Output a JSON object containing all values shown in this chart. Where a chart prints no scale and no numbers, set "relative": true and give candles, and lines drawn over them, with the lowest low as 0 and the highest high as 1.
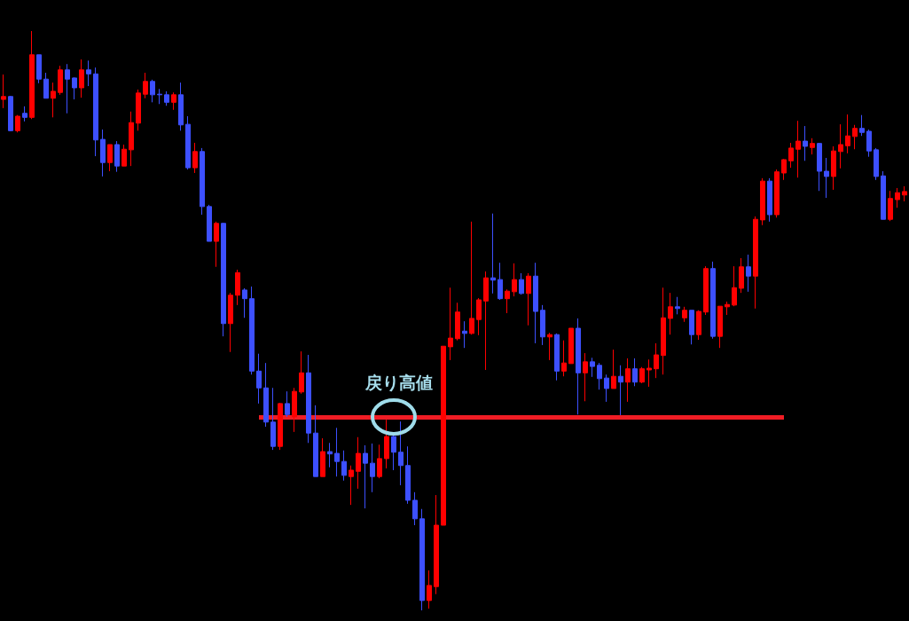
{
  "chart_data": {
    "type": "candlestick",
    "relative": true,
    "categories": [
      null,
      null,
      null,
      null,
      null,
      null,
      null,
      null,
      null,
      null,
      null,
      null,
      null,
      null,
      null,
      null,
      null,
      null,
      null,
      null,
      null,
      null,
      null,
      null,
      null,
      null,
      null,
      null,
      null,
      null,
      null,
      null,
      null,
      null,
      null,
      null,
      null,
      null,
      null,
      null,
      null,
      null,
      null,
      null,
      null,
      null,
      null,
      null,
      null,
      null,
      null,
      null,
      null,
      null,
      null,
      null,
      null,
      null,
      null,
      null,
      null,
      null,
      null,
      null,
      null,
      null,
      null,
      null,
      null,
      null,
      null,
      null,
      null,
      null,
      null,
      null,
      null,
      null,
      null,
      null,
      null,
      null,
      null,
      null,
      null,
      null,
      null,
      null,
      null,
      null,
      null,
      null,
      null,
      null,
      null,
      null,
      null,
      null,
      null,
      null,
      null,
      null,
      null,
      null,
      null,
      null,
      null,
      null,
      null,
      null,
      null,
      null,
      null,
      null,
      null,
      null,
      null,
      null,
      null,
      null,
      null,
      null,
      null,
      null,
      null,
      null,
      null,
      null
    ],
    "ohlc": [
      [
        0.882,
        0.925,
        0.867,
        0.887
      ],
      [
        0.887,
        0.888,
        0.827,
        0.828
      ],
      [
        0.828,
        0.855,
        0.825,
        0.853
      ],
      [
        0.858,
        0.87,
        0.844,
        0.851
      ],
      [
        0.851,
        1,
        0.848,
        0.959
      ],
      [
        0.959,
        0.959,
        0.91,
        0.917
      ],
      [
        0.917,
        0.928,
        0.884,
        0.884
      ],
      [
        0.884,
        0.911,
        0.851,
        0.896
      ],
      [
        0.894,
        0.94,
        0.89,
        0.933
      ],
      [
        0.933,
        0.943,
        0.858,
        0.917
      ],
      [
        0.919,
        0.92,
        0.882,
        0.902
      ],
      [
        0.902,
        0.951,
        0.885,
        0.933
      ],
      [
        0.933,
        0.949,
        0.905,
        0.926
      ],
      [
        0.926,
        0.937,
        0.784,
        0.812
      ],
      [
        0.813,
        0.83,
        0.749,
        0.773
      ],
      [
        0.773,
        0.804,
        0.758,
        0.804
      ],
      [
        0.804,
        0.81,
        0.757,
        0.767
      ],
      [
        0.767,
        0.804,
        0.767,
        0.796
      ],
      [
        0.795,
        0.861,
        0.767,
        0.842
      ],
      [
        0.841,
        0.899,
        0.828,
        0.893
      ],
      [
        0.891,
        0.928,
        0.884,
        0.913
      ],
      [
        0.913,
        0.916,
        0.877,
        0.89
      ],
      [
        0.891,
        0.9,
        0.874,
        0.89
      ],
      [
        0.89,
        0.896,
        0.871,
        0.877
      ],
      [
        0.877,
        0.894,
        0.864,
        0.89
      ],
      [
        0.89,
        0.911,
        0.828,
        0.838
      ],
      [
        0.839,
        0.853,
        0.761,
        0.764
      ],
      [
        0.764,
        0.807,
        0.755,
        0.792
      ],
      [
        0.792,
        0.798,
        0.683,
        0.697
      ],
      [
        0.697,
        0.7,
        0.637,
        0.637
      ],
      [
        0.637,
        0.671,
        0.593,
        0.668
      ],
      [
        0.668,
        0.669,
        0.473,
        0.495
      ],
      [
        0.495,
        0.548,
        0.446,
        0.544
      ],
      [
        0.544,
        0.588,
        0.527,
        0.583
      ],
      [
        0.553,
        0.556,
        0.505,
        0.538
      ],
      [
        0.538,
        0.559,
        0.407,
        0.413
      ],
      [
        0.413,
        0.443,
        0.357,
        0.384
      ],
      [
        0.384,
        0.427,
        0.317,
        0.325
      ],
      [
        0.325,
        0.384,
        0.277,
        0.283
      ],
      [
        0.283,
        0.358,
        0.277,
        0.357
      ],
      [
        0.357,
        0.378,
        0.334,
        0.338
      ],
      [
        0.334,
        0.384,
        0.308,
        0.378
      ],
      [
        0.377,
        0.447,
        0.374,
        0.41
      ],
      [
        0.41,
        0.441,
        0.289,
        0.306
      ],
      [
        0.306,
        0.354,
        0.231,
        0.231
      ],
      [
        0.231,
        0.297,
        0.231,
        0.274
      ],
      [
        0.274,
        0.289,
        0.247,
        0.27
      ],
      [
        0.271,
        0.315,
        0.231,
        0.257
      ],
      [
        0.257,
        0.276,
        0.224,
        0.233
      ],
      [
        0.231,
        0.25,
        0.182,
        0.242
      ],
      [
        0.24,
        0.299,
        0.21,
        0.271
      ],
      [
        0.271,
        0.285,
        0.176,
        0.254
      ],
      [
        0.254,
        0.288,
        0.204,
        0.231
      ],
      [
        0.231,
        0.286,
        0.228,
        0.262
      ],
      [
        0.262,
        0.329,
        0.245,
        0.3
      ],
      [
        0.3,
        0.303,
        0.242,
        0.273
      ],
      [
        0.273,
        0.326,
        0.216,
        0.25
      ],
      [
        0.25,
        0.283,
        0.184,
        0.19
      ],
      [
        0.19,
        0.204,
        0.147,
        0.158
      ],
      [
        0.158,
        0.175,
        0,
        0.017
      ],
      [
        0.017,
        0.069,
        0.003,
        0.043
      ],
      [
        0.041,
        0.199,
        0.028,
        0.147
      ],
      [
        0.147,
        0.456,
        0.147,
        0.456
      ],
      [
        0.455,
        0.557,
        0.432,
        0.47
      ],
      [
        0.469,
        0.531,
        0.466,
        0.515
      ],
      [
        0.482,
        0.499,
        0.453,
        0.478
      ],
      [
        0.478,
        0.671,
        0.476,
        0.504
      ],
      [
        0.502,
        0.539,
        0.475,
        0.536
      ],
      [
        0.534,
        0.585,
        0.415,
        0.574
      ],
      [
        0.574,
        0.685,
        0.547,
        0.57
      ],
      [
        0.571,
        0.6,
        0.536,
        0.538
      ],
      [
        0.538,
        0.554,
        0.513,
        0.551
      ],
      [
        0.55,
        0.599,
        0.542,
        0.571
      ],
      [
        0.571,
        0.582,
        0.545,
        0.547
      ],
      [
        0.547,
        0.582,
        0.492,
        0.577
      ],
      [
        0.577,
        0.6,
        0.461,
        0.516
      ],
      [
        0.518,
        0.527,
        0.458,
        0.472
      ],
      [
        0.472,
        0.479,
        0.432,
        0.476
      ],
      [
        0.476,
        0.478,
        0.397,
        0.413
      ],
      [
        0.413,
        0.466,
        0.404,
        0.427
      ],
      [
        0.426,
        0.487,
        0.426,
        0.487
      ],
      [
        0.487,
        0.504,
        0.338,
        0.41
      ],
      [
        0.41,
        0.444,
        0.361,
        0.429
      ],
      [
        0.429,
        0.436,
        0.403,
        0.421
      ],
      [
        0.423,
        0.427,
        0.381,
        0.4
      ],
      [
        0.401,
        0.407,
        0.36,
        0.383
      ],
      [
        0.383,
        0.45,
        0.383,
        0.404
      ],
      [
        0.404,
        0.423,
        0.337,
        0.394
      ],
      [
        0.394,
        0.435,
        0.36,
        0.417
      ],
      [
        0.417,
        0.435,
        0.387,
        0.394
      ],
      [
        0.394,
        0.42,
        0.392,
        0.417
      ],
      [
        0.415,
        0.433,
        0.386,
        0.418
      ],
      [
        0.417,
        0.461,
        0.401,
        0.441
      ],
      [
        0.44,
        0.557,
        0.407,
        0.505
      ],
      [
        0.504,
        0.548,
        0.476,
        0.524
      ],
      [
        0.524,
        0.541,
        0.511,
        0.521
      ],
      [
        0.505,
        0.524,
        0.498,
        0.518
      ],
      [
        0.518,
        0.518,
        0.459,
        0.476
      ],
      [
        0.476,
        0.518,
        0.467,
        0.516
      ],
      [
        0.515,
        0.594,
        0.51,
        0.59
      ],
      [
        0.59,
        0.602,
        0.469,
        0.473
      ],
      [
        0.473,
        0.525,
        0.453,
        0.525
      ],
      [
        0.524,
        0.533,
        0.51,
        0.528
      ],
      [
        0.527,
        0.594,
        0.525,
        0.557
      ],
      [
        0.556,
        0.608,
        0.548,
        0.593
      ],
      [
        0.593,
        0.614,
        0.55,
        0.577
      ],
      [
        0.577,
        0.68,
        0.521,
        0.675
      ],
      [
        0.674,
        0.746,
        0.665,
        0.741
      ],
      [
        0.741,
        0.746,
        0.671,
        0.683
      ],
      [
        0.683,
        0.761,
        0.678,
        0.757
      ],
      [
        0.755,
        0.779,
        0.743,
        0.778
      ],
      [
        0.776,
        0.807,
        0.764,
        0.798
      ],
      [
        0.796,
        0.845,
        0.747,
        0.81
      ],
      [
        0.81,
        0.836,
        0.776,
        0.801
      ],
      [
        0.799,
        0.815,
        0.787,
        0.806
      ],
      [
        0.806,
        0.807,
        0.724,
        0.758
      ],
      [
        0.758,
        0.781,
        0.712,
        0.749
      ],
      [
        0.749,
        0.801,
        0.726,
        0.793
      ],
      [
        0.792,
        0.839,
        0.763,
        0.804
      ],
      [
        0.802,
        0.856,
        0.789,
        0.819
      ],
      [
        0.818,
        0.838,
        0.796,
        0.832
      ],
      [
        0.832,
        0.855,
        0.819,
        0.825
      ],
      [
        0.827,
        0.83,
        0.783,
        0.793
      ],
      [
        0.795,
        0.798,
        0.743,
        0.749
      ],
      [
        0.75,
        0.758,
        0.675,
        0.675
      ],
      [
        0.675,
        0.724,
        0.672,
        0.711
      ],
      [
        0.709,
        0.729,
        0.695,
        0.721
      ],
      [
        0.717,
        0.732,
        0.706,
        0.723
      ]
    ],
    "colors": [
      "#ff0000",
      "#3d50ff",
      "#ff0000",
      "#3d50ff",
      "#ff0000",
      "#3d50ff",
      "#3d50ff",
      "#ff0000",
      "#ff0000",
      "#3d50ff",
      "#3d50ff",
      "#ff0000",
      "#3d50ff",
      "#3d50ff",
      "#3d50ff",
      "#ff0000",
      "#3d50ff",
      "#ff0000",
      "#ff0000",
      "#ff0000",
      "#ff0000",
      "#3d50ff",
      "#3d50ff",
      "#3d50ff",
      "#ff0000",
      "#3d50ff",
      "#3d50ff",
      "#ff0000",
      "#3d50ff",
      "#3d50ff",
      "#ff0000",
      "#3d50ff",
      "#ff0000",
      "#ff0000",
      "#3d50ff",
      "#3d50ff",
      "#3d50ff",
      "#3d50ff",
      "#3d50ff",
      "#ff0000",
      "#3d50ff",
      "#ff0000",
      "#ff0000",
      "#3d50ff",
      "#3d50ff",
      "#ff0000",
      "#3d50ff",
      "#3d50ff",
      "#3d50ff",
      "#ff0000",
      "#ff0000",
      "#3d50ff",
      "#3d50ff",
      "#ff0000",
      "#ff0000",
      "#3d50ff",
      "#3d50ff",
      "#3d50ff",
      "#3d50ff",
      "#3d50ff",
      "#ff0000",
      "#ff0000",
      "#ff0000",
      "#ff0000",
      "#ff0000",
      "#3d50ff",
      "#ff0000",
      "#ff0000",
      "#ff0000",
      "#3d50ff",
      "#3d50ff",
      "#ff0000",
      "#ff0000",
      "#3d50ff",
      "#ff0000",
      "#3d50ff",
      "#3d50ff",
      "#ff0000",
      "#3d50ff",
      "#ff0000",
      "#ff0000",
      "#3d50ff",
      "#ff0000",
      "#3d50ff",
      "#3d50ff",
      "#3d50ff",
      "#ff0000",
      "#3d50ff",
      "#ff0000",
      "#3d50ff",
      "#ff0000",
      "#ff0000",
      "#ff0000",
      "#ff0000",
      "#ff0000",
      "#3d50ff",
      "#ff0000",
      "#3d50ff",
      "#ff0000",
      "#ff0000",
      "#3d50ff",
      "#ff0000",
      "#ff0000",
      "#ff0000",
      "#ff0000",
      "#3d50ff",
      "#ff0000",
      "#ff0000",
      "#3d50ff",
      "#ff0000",
      "#ff0000",
      "#ff0000",
      "#ff0000",
      "#3d50ff",
      "#ff0000",
      "#3d50ff",
      "#3d50ff",
      "#ff0000",
      "#ff0000",
      "#ff0000",
      "#ff0000",
      "#3d50ff",
      "#3d50ff",
      "#3d50ff",
      "#3d50ff",
      "#ff0000",
      "#ff0000",
      "#ff0000"
    ],
    "ref_lines": [
      {
        "axis": "y",
        "value": 0.334,
        "color": "#f01c24"
      }
    ],
    "annotations": [
      {
        "text": "戻り高値",
        "y": 0.334
      }
    ]
  }
}
